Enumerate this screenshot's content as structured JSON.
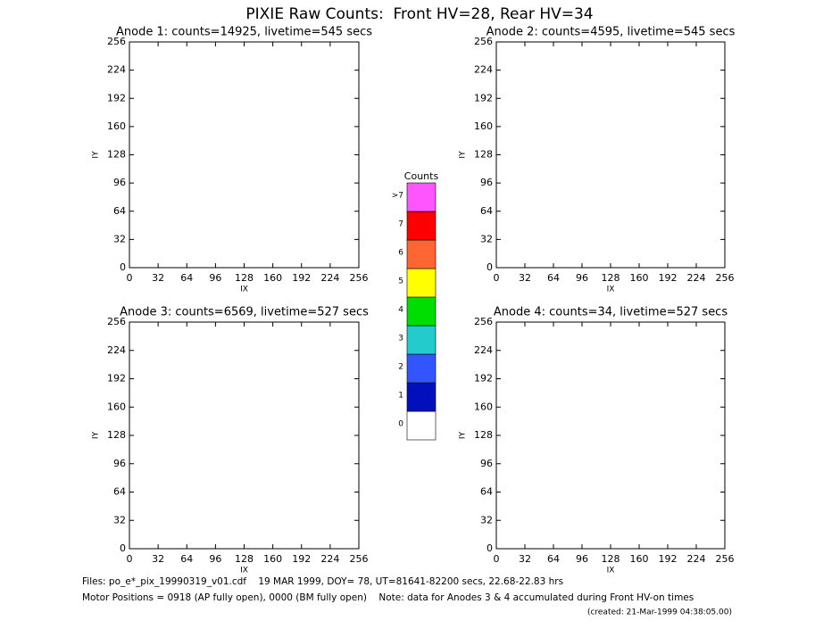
{
  "title": "PIXIE Raw Counts:  Front HV=28, Rear HV=34",
  "chart_data": [
    {
      "type": "heatmap",
      "title": "Anode 1: counts=14925, livetime=545 secs",
      "xlabel": "IX",
      "ylabel": "IY",
      "xlim": [
        0,
        256
      ],
      "ylim": [
        0,
        256
      ],
      "xticks": [
        0,
        32,
        64,
        96,
        128,
        160,
        192,
        224,
        256
      ],
      "yticks": [
        0,
        32,
        64,
        96,
        128,
        160,
        192,
        224,
        256
      ]
    },
    {
      "type": "heatmap",
      "title": "Anode 2: counts=4595, livetime=545 secs",
      "xlabel": "IX",
      "ylabel": "IY",
      "xlim": [
        0,
        256
      ],
      "ylim": [
        0,
        256
      ],
      "xticks": [
        0,
        32,
        64,
        96,
        128,
        160,
        192,
        224,
        256
      ],
      "yticks": [
        0,
        32,
        64,
        96,
        128,
        160,
        192,
        224,
        256
      ]
    },
    {
      "type": "heatmap",
      "title": "Anode 3: counts=6569, livetime=527 secs",
      "xlabel": "IX",
      "ylabel": "IY",
      "xlim": [
        0,
        256
      ],
      "ylim": [
        0,
        256
      ],
      "xticks": [
        0,
        32,
        64,
        96,
        128,
        160,
        192,
        224,
        256
      ],
      "yticks": [
        0,
        32,
        64,
        96,
        128,
        160,
        192,
        224,
        256
      ]
    },
    {
      "type": "heatmap",
      "title": "Anode 4: counts=34, livetime=527 secs",
      "xlabel": "IX",
      "ylabel": "IY",
      "xlim": [
        0,
        256
      ],
      "ylim": [
        0,
        256
      ],
      "xticks": [
        0,
        32,
        64,
        96,
        128,
        160,
        192,
        224,
        256
      ],
      "yticks": [
        0,
        32,
        64,
        96,
        128,
        160,
        192,
        224,
        256
      ]
    }
  ],
  "colorbar": {
    "title": "Counts",
    "labels": [
      "0",
      "1",
      "2",
      "3",
      "4",
      "5",
      "6",
      "7",
      ">7"
    ],
    "colors": [
      "#ffffff",
      "#0011bb",
      "#3355ff",
      "#22cccc",
      "#00dd00",
      "#ffff00",
      "#ff6633",
      "#ff0000",
      "#ff55ff"
    ]
  },
  "footer": [
    "Files: po_e*_pix_19990319_v01.cdf    19 MAR 1999, DOY= 78, UT=81641-82200 secs, 22.68-22.83 hrs",
    "Motor Positions = 0918 (AP fully open), 0000 (BM fully open)    Note: data for Anodes 3 & 4 accumulated during Front HV-on times",
    "(created: 21-Mar-1999 04:38:05.00)"
  ]
}
